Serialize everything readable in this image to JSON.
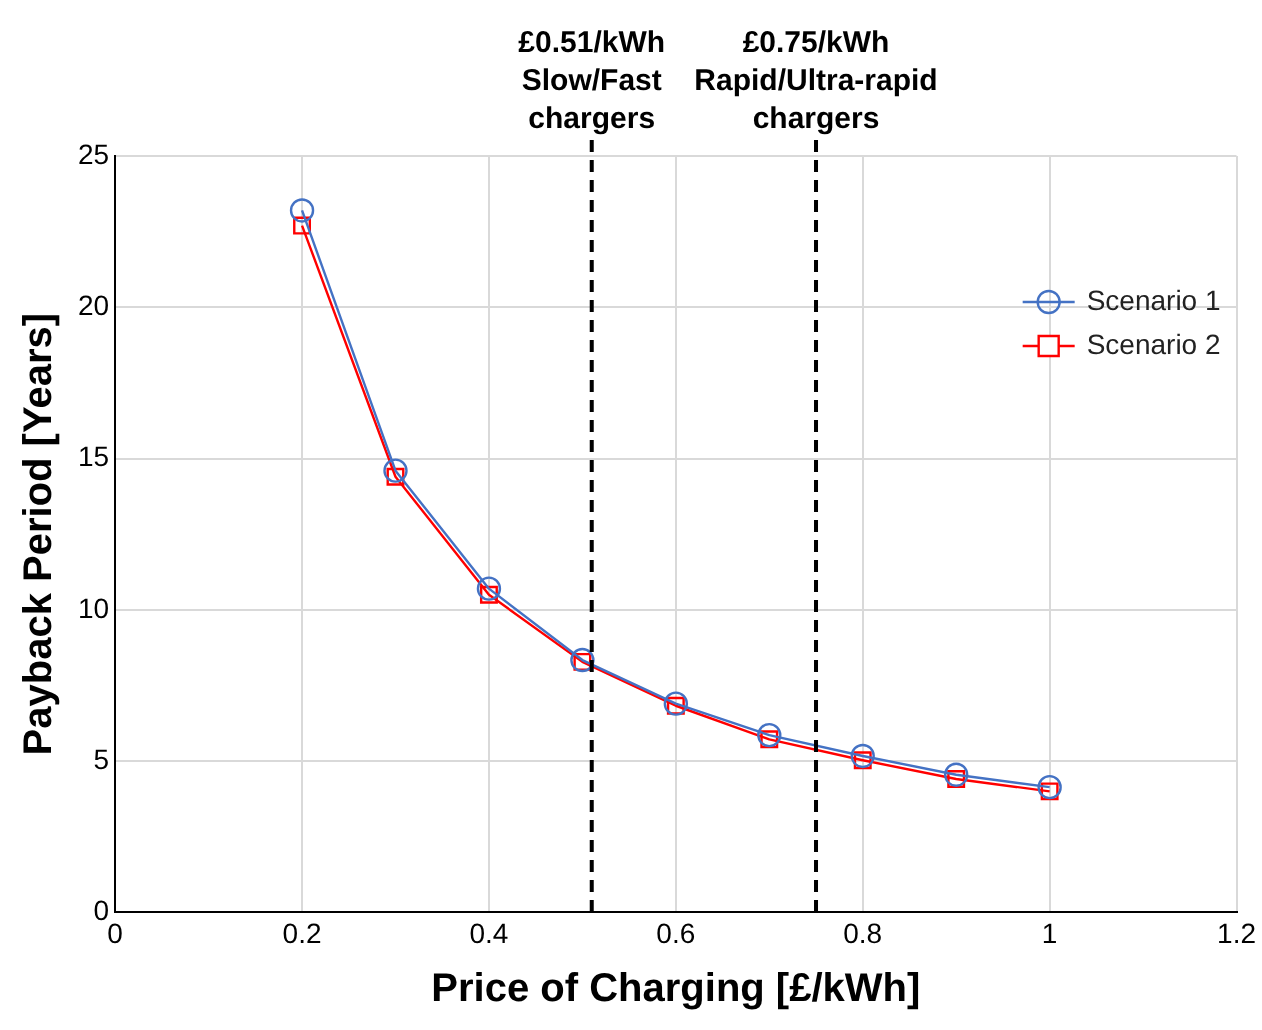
{
  "chart_data": {
    "type": "line",
    "xlabel": "Price of Charging [£/kWh]",
    "ylabel": "Payback Period [Years]",
    "x": [
      0.2,
      0.3,
      0.4,
      0.5,
      0.6,
      0.7,
      0.8,
      0.9,
      1.0
    ],
    "series": [
      {
        "name": "Scenario 1",
        "color": "#4472c4",
        "marker": "circle",
        "values": [
          23.2,
          14.6,
          10.7,
          8.34,
          6.9,
          5.86,
          5.17,
          4.55,
          4.14
        ]
      },
      {
        "name": "Scenario 2",
        "color": "#ff0000",
        "marker": "square",
        "values": [
          22.7,
          14.4,
          10.5,
          8.28,
          6.83,
          5.72,
          5.03,
          4.41,
          4.0
        ]
      }
    ],
    "xlim": [
      0,
      1.2
    ],
    "xticks": [
      0,
      0.2,
      0.4,
      0.6,
      0.8,
      1,
      1.2
    ],
    "ylim": [
      0,
      25
    ],
    "yticks": [
      0,
      5,
      10,
      15,
      20,
      25
    ],
    "ref_lines": [
      {
        "axis": "x",
        "value": 0.51,
        "label": "£0.51/kWh Slow/Fast chargers",
        "color": "#000000",
        "line_style": "dashed"
      },
      {
        "axis": "x",
        "value": 0.75,
        "label": "£0.75/kWh Rapid/Ultra-rapid chargers",
        "color": "#000000",
        "line_style": "dashed"
      }
    ],
    "grid": true,
    "legend": "top right",
    "line_style": "solid"
  }
}
